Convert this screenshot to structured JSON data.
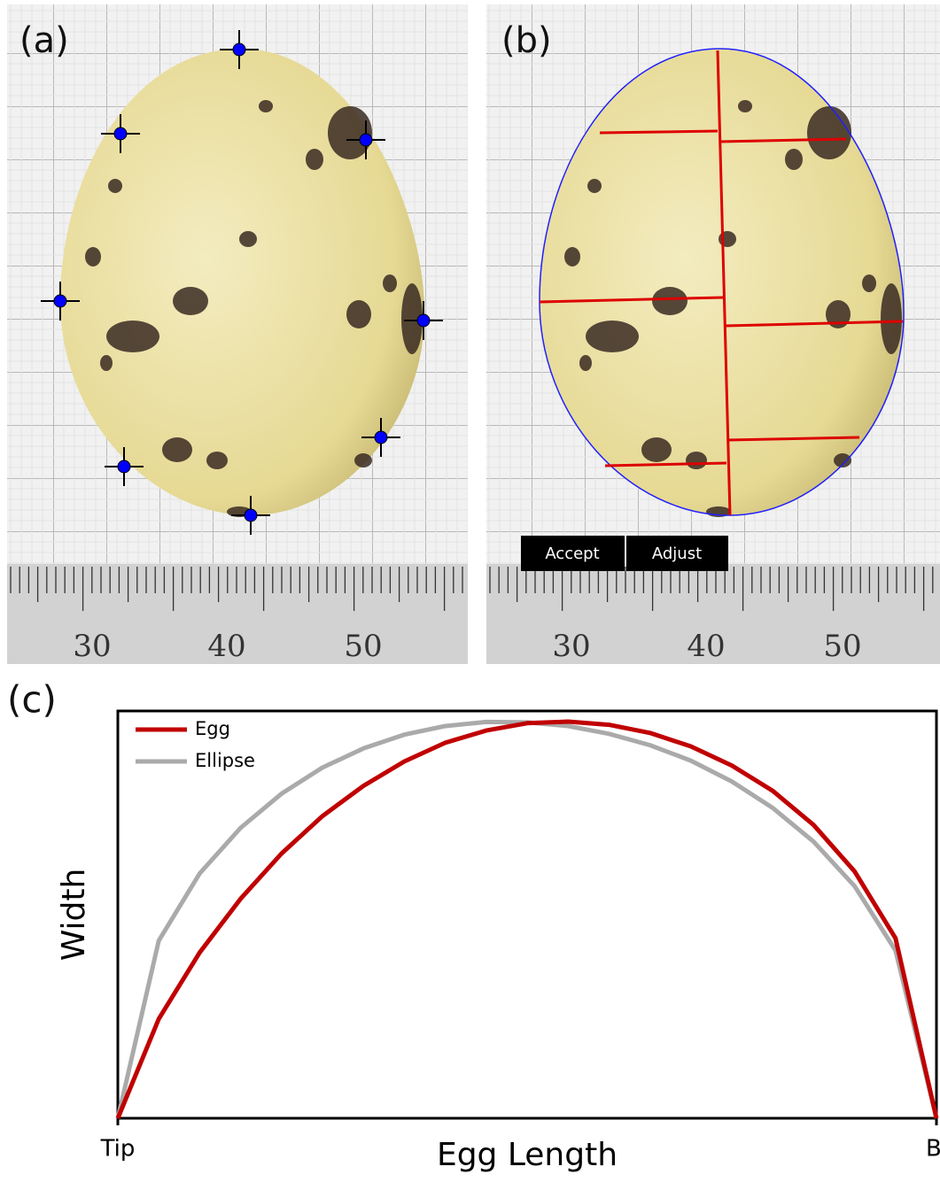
{
  "panels": {
    "a": {
      "label": "(a)",
      "ruler_labels": [
        "30",
        "40",
        "50"
      ]
    },
    "b": {
      "label": "(b)",
      "ruler_labels": [
        "30",
        "40",
        "50"
      ],
      "buttons": [
        "Accept",
        "Adjust"
      ]
    }
  },
  "chart_data": {
    "type": "line",
    "label": "(c)",
    "x_label": "Egg Length",
    "y_label": "Width",
    "x": [
      0,
      0.05,
      0.1,
      0.15,
      0.2,
      0.25,
      0.3,
      0.35,
      0.4,
      0.45,
      0.5,
      0.55,
      0.6,
      0.65,
      0.7,
      0.75,
      0.8,
      0.85,
      0.9,
      0.95,
      1
    ],
    "xlim": [
      0,
      1
    ],
    "ylim": [
      0,
      1
    ],
    "xticks": [
      {
        "value": 0,
        "label": "Tip"
      },
      {
        "value": 1,
        "label": "Base"
      }
    ],
    "legend": "upper left",
    "series": [
      {
        "name": "Egg",
        "color": "#c00000",
        "values": [
          0,
          0.244,
          0.407,
          0.539,
          0.65,
          0.742,
          0.816,
          0.876,
          0.922,
          0.952,
          0.97,
          0.974,
          0.966,
          0.946,
          0.913,
          0.866,
          0.804,
          0.72,
          0.606,
          0.442,
          0
        ]
      },
      {
        "name": "Ellipse",
        "color": "#aaaaaa",
        "values": [
          0,
          0.436,
          0.601,
          0.713,
          0.797,
          0.861,
          0.908,
          0.942,
          0.963,
          0.973,
          0.972,
          0.963,
          0.944,
          0.916,
          0.878,
          0.827,
          0.762,
          0.679,
          0.57,
          0.412,
          0
        ]
      }
    ]
  }
}
